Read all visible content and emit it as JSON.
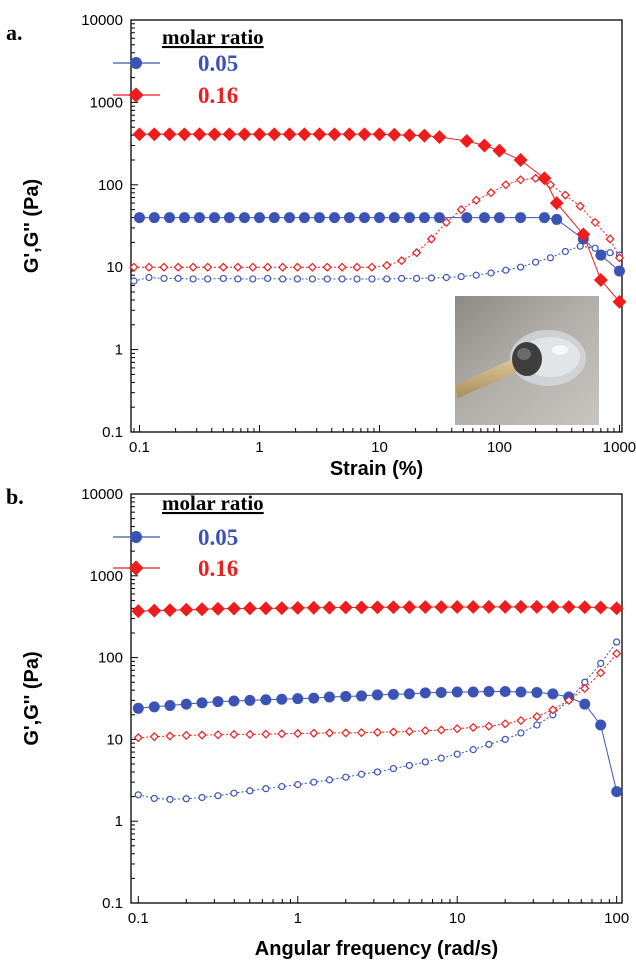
{
  "colors": {
    "blue": "#3a53b5",
    "red": "#ee1c1c",
    "axis": "#000000"
  },
  "chart_data": [
    {
      "type": "line",
      "panel_label": "a.",
      "xlabel": "Strain (%)",
      "ylabel": "G',G'' (Pa)",
      "x_scale": "log",
      "y_scale": "log",
      "xlim": [
        0.085,
        1050
      ],
      "ylim": [
        0.1,
        10000
      ],
      "x_ticks": [
        0.1,
        1,
        10,
        100,
        1000
      ],
      "x_tick_labels": [
        "0.1",
        "1",
        "10",
        "100",
        "1000"
      ],
      "y_ticks": [
        0.1,
        1,
        10,
        100,
        1000,
        10000
      ],
      "y_tick_labels": [
        "0.1",
        "1",
        "10",
        "100",
        "1000",
        "10000"
      ],
      "legend_title": "molar ratio",
      "legend_placement": "top-left",
      "inset_image": "photo of gel sample on wooden stick",
      "series": [
        {
          "name": "0.05",
          "quantity": "G'",
          "color": "blue",
          "filled": true,
          "marker": "circle",
          "x": [
            0.1,
            0.133,
            0.178,
            0.237,
            0.316,
            0.422,
            0.562,
            0.75,
            1,
            1.33,
            1.78,
            2.37,
            3.16,
            4.22,
            5.62,
            7.5,
            10,
            13.3,
            17.8,
            23.7,
            31.6,
            53.4,
            75,
            100,
            150,
            237,
            300,
            500,
            700,
            1000
          ],
          "y": [
            40,
            40,
            40,
            40,
            40,
            40,
            40,
            40,
            40,
            40,
            40,
            40,
            40,
            40,
            40,
            40,
            40,
            40,
            40,
            40,
            40,
            40,
            40,
            40,
            40,
            40,
            38,
            22,
            14,
            9
          ]
        },
        {
          "name": "0.16",
          "quantity": "G'",
          "color": "red",
          "filled": true,
          "marker": "diamond",
          "x": [
            0.1,
            0.133,
            0.178,
            0.237,
            0.316,
            0.422,
            0.562,
            0.75,
            1,
            1.33,
            1.78,
            2.37,
            3.16,
            4.22,
            5.62,
            7.5,
            10,
            13.3,
            17.8,
            23.7,
            31.6,
            53.4,
            75,
            100,
            150,
            237,
            300,
            500,
            700,
            1000
          ],
          "y": [
            410,
            410,
            410,
            410,
            410,
            410,
            410,
            410,
            410,
            410,
            410,
            410,
            410,
            410,
            410,
            410,
            410,
            405,
            400,
            395,
            380,
            340,
            300,
            260,
            200,
            120,
            60,
            25,
            7,
            3.8
          ]
        },
        {
          "name": "0.05",
          "quantity": "G''",
          "color": "blue",
          "filled": false,
          "marker": "circle",
          "x": [
            0.09,
            0.12,
            0.16,
            0.21,
            0.28,
            0.37,
            0.5,
            0.66,
            0.88,
            1.17,
            1.56,
            2.07,
            2.76,
            3.67,
            4.88,
            6.5,
            8.65,
            11.5,
            15.3,
            20.4,
            27.1,
            36.1,
            48,
            64,
            85,
            113,
            150,
            200,
            266,
            354,
            471,
            627,
            835,
            1000
          ],
          "y": [
            6.8,
            7.5,
            7.3,
            7.3,
            7.2,
            7.2,
            7.3,
            7.2,
            7.2,
            7.3,
            7.2,
            7.2,
            7.2,
            7.2,
            7.2,
            7.2,
            7.2,
            7.2,
            7.3,
            7.3,
            7.4,
            7.5,
            7.7,
            8,
            8.5,
            9.2,
            10,
            11.5,
            13,
            15.5,
            18,
            17,
            15,
            14
          ]
        },
        {
          "name": "0.16",
          "quantity": "G''",
          "color": "red",
          "filled": false,
          "marker": "diamond",
          "x": [
            0.09,
            0.12,
            0.16,
            0.21,
            0.28,
            0.37,
            0.5,
            0.66,
            0.88,
            1.17,
            1.56,
            2.07,
            2.76,
            3.67,
            4.88,
            6.5,
            8.65,
            11.5,
            15.3,
            20.4,
            27.1,
            36.1,
            48,
            64,
            85,
            113,
            150,
            200,
            266,
            354,
            471,
            627,
            835,
            1000
          ],
          "y": [
            10,
            10,
            10,
            10,
            10,
            10,
            10,
            10,
            10,
            10,
            10,
            10,
            10,
            10,
            10,
            10,
            10,
            10.5,
            12,
            15,
            22,
            35,
            50,
            65,
            80,
            100,
            115,
            120,
            100,
            75,
            55,
            35,
            22,
            13
          ]
        }
      ]
    },
    {
      "type": "line",
      "panel_label": "b.",
      "xlabel": "Angular frequency (rad/s)",
      "ylabel": "G',G'' (Pa)",
      "x_scale": "log",
      "y_scale": "log",
      "xlim": [
        0.09,
        108
      ],
      "ylim": [
        0.1,
        10000
      ],
      "x_ticks": [
        0.1,
        1,
        10,
        100
      ],
      "x_tick_labels": [
        "0.1",
        "1",
        "10",
        "100"
      ],
      "y_ticks": [
        0.1,
        1,
        10,
        100,
        1000,
        10000
      ],
      "y_tick_labels": [
        "0.1",
        "1",
        "10",
        "100",
        "1000",
        "10000"
      ],
      "legend_title": "molar ratio",
      "legend_placement": "top-left",
      "series": [
        {
          "name": "0.05",
          "quantity": "G'",
          "color": "blue",
          "filled": true,
          "marker": "circle",
          "x": [
            0.1,
            0.126,
            0.158,
            0.2,
            0.251,
            0.316,
            0.398,
            0.501,
            0.631,
            0.794,
            1,
            1.26,
            1.58,
            2,
            2.51,
            3.16,
            3.98,
            5.01,
            6.31,
            7.94,
            10,
            12.6,
            15.8,
            20,
            25.1,
            31.6,
            39.8,
            50.1,
            63.1,
            79.4,
            100
          ],
          "y": [
            24,
            25,
            26,
            27,
            28,
            29,
            29.5,
            30,
            30.5,
            31,
            31.5,
            32,
            33,
            33.5,
            34,
            35,
            35.5,
            36,
            37,
            37.5,
            38,
            38,
            38.5,
            38.5,
            38,
            37.5,
            36,
            33,
            27,
            15,
            2.3
          ]
        },
        {
          "name": "0.16",
          "quantity": "G'",
          "color": "red",
          "filled": true,
          "marker": "diamond",
          "x": [
            0.1,
            0.126,
            0.158,
            0.2,
            0.251,
            0.316,
            0.398,
            0.501,
            0.631,
            0.794,
            1,
            1.26,
            1.58,
            2,
            2.51,
            3.16,
            3.98,
            5.01,
            6.31,
            7.94,
            10,
            12.6,
            15.8,
            20,
            25.1,
            31.6,
            39.8,
            50.1,
            63.1,
            79.4,
            100
          ],
          "y": [
            370,
            375,
            380,
            385,
            390,
            395,
            398,
            400,
            400,
            402,
            405,
            407,
            408,
            410,
            410,
            412,
            413,
            414,
            415,
            415,
            416,
            416,
            417,
            417,
            417,
            417,
            416,
            415,
            413,
            410,
            400
          ]
        },
        {
          "name": "0.05",
          "quantity": "G''",
          "color": "blue",
          "filled": false,
          "marker": "circle",
          "x": [
            0.1,
            0.126,
            0.158,
            0.2,
            0.251,
            0.316,
            0.398,
            0.501,
            0.631,
            0.794,
            1,
            1.26,
            1.58,
            2,
            2.51,
            3.16,
            3.98,
            5.01,
            6.31,
            7.94,
            10,
            12.6,
            15.8,
            20,
            25.1,
            31.6,
            39.8,
            50.1,
            63.1,
            79.4,
            100
          ],
          "y": [
            2.1,
            1.9,
            1.85,
            1.88,
            1.95,
            2.05,
            2.2,
            2.35,
            2.5,
            2.65,
            2.8,
            3.0,
            3.2,
            3.45,
            3.75,
            4.0,
            4.4,
            4.8,
            5.3,
            5.9,
            6.6,
            7.5,
            8.7,
            10,
            12,
            15,
            20,
            30,
            50,
            85,
            155
          ]
        },
        {
          "name": "0.16",
          "quantity": "G''",
          "color": "red",
          "filled": false,
          "marker": "diamond",
          "x": [
            0.1,
            0.126,
            0.158,
            0.2,
            0.251,
            0.316,
            0.398,
            0.501,
            0.631,
            0.794,
            1,
            1.26,
            1.58,
            2,
            2.51,
            3.16,
            3.98,
            5.01,
            6.31,
            7.94,
            10,
            12.6,
            15.8,
            20,
            25.1,
            31.6,
            39.8,
            50.1,
            63.1,
            79.4,
            100
          ],
          "y": [
            10.5,
            10.8,
            11,
            11.2,
            11.3,
            11.4,
            11.5,
            11.5,
            11.6,
            11.7,
            11.8,
            11.9,
            12,
            12,
            12.1,
            12.2,
            12.3,
            12.5,
            12.8,
            13,
            13.5,
            14,
            14.5,
            15.5,
            17,
            19,
            23,
            30,
            42,
            65,
            112
          ]
        }
      ]
    }
  ]
}
